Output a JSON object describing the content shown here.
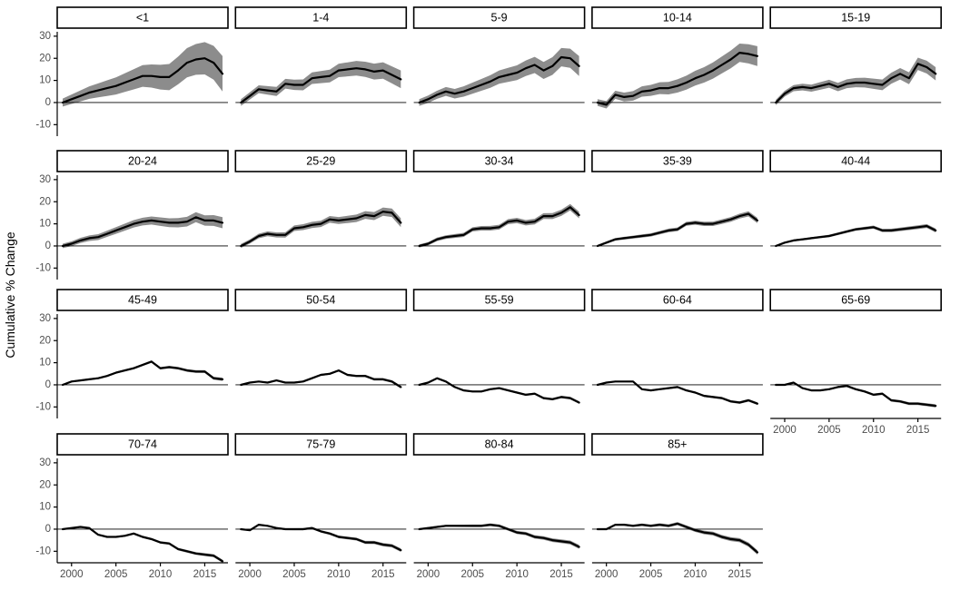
{
  "figure": {
    "ylabel": "Cumulative % Change",
    "colors": {
      "line": "#000000",
      "ribbon": "#8c8c8c",
      "tick_text": "#4d4d4d",
      "strip_border": "#000000",
      "strip_fill": "#ffffff",
      "axis": "#000000",
      "background": "#ffffff"
    }
  },
  "chart_data": {
    "type": "line",
    "title": "",
    "xlabel": "",
    "ylabel": "Cumulative % Change",
    "x": [
      1999,
      2000,
      2001,
      2002,
      2003,
      2004,
      2005,
      2006,
      2007,
      2008,
      2009,
      2010,
      2011,
      2012,
      2013,
      2014,
      2015,
      2016,
      2017
    ],
    "x_ticks": [
      2000,
      2005,
      2010,
      2015
    ],
    "y_ticks": [
      30,
      20,
      10,
      0,
      -10
    ],
    "ylim": [
      -15.2,
      32
    ],
    "grid": false,
    "legend": "none",
    "zero_line": 0,
    "facets": [
      {
        "label": "<1",
        "values": [
          0,
          1.5,
          3,
          4.5,
          5.5,
          6.5,
          7.5,
          9,
          10.5,
          12,
          12,
          11.5,
          11.5,
          14.5,
          18,
          19.5,
          20,
          18,
          13
        ],
        "band": [
          1.8,
          8
        ]
      },
      {
        "label": "1-4",
        "values": [
          0,
          3,
          6,
          5.5,
          5,
          8.5,
          8,
          8,
          11,
          11.5,
          12,
          14.5,
          15,
          15.5,
          15,
          14,
          14.5,
          12.5,
          10.5
        ],
        "band": [
          1.5,
          4
        ]
      },
      {
        "label": "5-9",
        "values": [
          0,
          1.5,
          3.5,
          5,
          4,
          5,
          6.5,
          8,
          9.5,
          11.5,
          12.5,
          13.5,
          15.5,
          17,
          14.5,
          16.5,
          20.5,
          20,
          16.5
        ],
        "band": [
          1.5,
          4.5
        ]
      },
      {
        "label": "10-14",
        "values": [
          0,
          -1,
          3.5,
          2.5,
          3,
          5,
          5.5,
          6.5,
          6.5,
          7.5,
          9,
          11,
          12.5,
          14.5,
          17,
          19.5,
          22.5,
          22,
          21
        ],
        "band": [
          1.5,
          4.5
        ]
      },
      {
        "label": "15-19",
        "values": [
          0,
          4,
          6.5,
          7,
          6.5,
          7.5,
          8.5,
          7,
          8.5,
          9,
          9,
          8.5,
          8,
          11,
          13,
          11,
          17.5,
          16,
          13
        ],
        "band": [
          1.2,
          3
        ]
      },
      {
        "label": "20-24",
        "values": [
          0,
          1,
          2.5,
          3.5,
          4,
          5.5,
          7,
          8.5,
          10,
          11,
          11.5,
          11,
          10.5,
          10.5,
          11,
          13,
          11.5,
          11.5,
          10.5
        ],
        "band": [
          1,
          2.5
        ]
      },
      {
        "label": "25-29",
        "values": [
          0,
          2,
          4.5,
          5.5,
          5,
          5,
          8,
          8.5,
          9.5,
          10,
          12,
          11.5,
          12,
          12.5,
          14,
          13.5,
          15.5,
          15,
          10.5
        ],
        "band": [
          0.9,
          2
        ]
      },
      {
        "label": "30-34",
        "values": [
          0,
          1,
          3,
          4,
          4.5,
          5,
          7.5,
          8,
          8,
          8.5,
          11,
          11.5,
          10.5,
          11,
          13.5,
          13.5,
          15,
          17.5,
          14
        ],
        "band": [
          0.7,
          1.5
        ]
      },
      {
        "label": "35-39",
        "values": [
          0,
          1.5,
          3,
          3.5,
          4,
          4.5,
          5,
          6,
          7,
          7.5,
          10,
          10.5,
          10,
          10,
          11,
          12,
          13.5,
          14.5,
          11.5
        ],
        "band": [
          0.5,
          1.2
        ]
      },
      {
        "label": "40-44",
        "values": [
          0,
          1.5,
          2.5,
          3,
          3.5,
          4,
          4.5,
          5.5,
          6.5,
          7.5,
          8,
          8.5,
          7,
          7,
          7.5,
          8,
          8.5,
          9,
          7
        ],
        "band": [
          0.4,
          0.9
        ]
      },
      {
        "label": "45-49",
        "values": [
          0,
          1.5,
          2,
          2.5,
          3,
          4,
          5.5,
          6.5,
          7.5,
          9,
          10.5,
          7.5,
          8,
          7.5,
          6.5,
          6,
          6,
          3,
          2.5
        ],
        "band": [
          0.35,
          0.7
        ]
      },
      {
        "label": "50-54",
        "values": [
          0,
          1,
          1.5,
          1,
          2,
          1,
          1,
          1.5,
          3,
          4.5,
          5,
          6.5,
          4.5,
          4,
          4,
          2.5,
          2.5,
          1.5,
          -1
        ],
        "band": [
          0.3,
          0.6
        ]
      },
      {
        "label": "55-59",
        "values": [
          0,
          1,
          3,
          1.5,
          -1,
          -2.5,
          -3,
          -3,
          -2,
          -1.5,
          -2.5,
          -3.5,
          -4.5,
          -4,
          -6,
          -6.5,
          -5.5,
          -6,
          -8
        ],
        "band": [
          0.3,
          0.6
        ]
      },
      {
        "label": "60-64",
        "values": [
          0,
          1,
          1.5,
          1.5,
          1.5,
          -2,
          -2.5,
          -2,
          -1.5,
          -1,
          -2.5,
          -3.5,
          -5,
          -5.5,
          -6,
          -7.5,
          -8,
          -7,
          -8.5
        ],
        "band": [
          0.3,
          0.6
        ]
      },
      {
        "label": "65-69",
        "values": [
          0,
          0,
          1,
          -1.5,
          -2.5,
          -2.5,
          -2,
          -1,
          -0.5,
          -2,
          -3,
          -4.5,
          -4,
          -7,
          -7.5,
          -8.5,
          -8.5,
          -9,
          -9.5
        ],
        "band": [
          0.3,
          0.7
        ]
      },
      {
        "label": "70-74",
        "values": [
          0,
          0.5,
          1,
          0.5,
          -2.5,
          -3.5,
          -3.5,
          -3,
          -2,
          -3.5,
          -4.5,
          -6,
          -6.5,
          -9,
          -10,
          -11,
          -11.5,
          -12,
          -14.5
        ],
        "band": [
          0.3,
          0.7
        ]
      },
      {
        "label": "75-79",
        "values": [
          0,
          -0.5,
          2,
          1.5,
          0.5,
          0,
          0,
          0,
          0.5,
          -1,
          -2,
          -3.5,
          -4,
          -4.5,
          -6,
          -6,
          -7,
          -7.5,
          -9.5
        ],
        "band": [
          0.3,
          0.8
        ]
      },
      {
        "label": "80-84",
        "values": [
          0,
          0.5,
          1,
          1.5,
          1.5,
          1.5,
          1.5,
          1.5,
          2,
          1.5,
          0,
          -1.5,
          -2,
          -3.5,
          -4,
          -5,
          -5.5,
          -6,
          -8
        ],
        "band": [
          0.4,
          0.9
        ]
      },
      {
        "label": "85+",
        "values": [
          0,
          0,
          2,
          2,
          1.5,
          2,
          1.5,
          2,
          1.5,
          2.5,
          1,
          -0.5,
          -1.5,
          -2,
          -3.5,
          -4.5,
          -5,
          -7,
          -10.5
        ],
        "band": [
          0.4,
          1
        ]
      }
    ]
  }
}
